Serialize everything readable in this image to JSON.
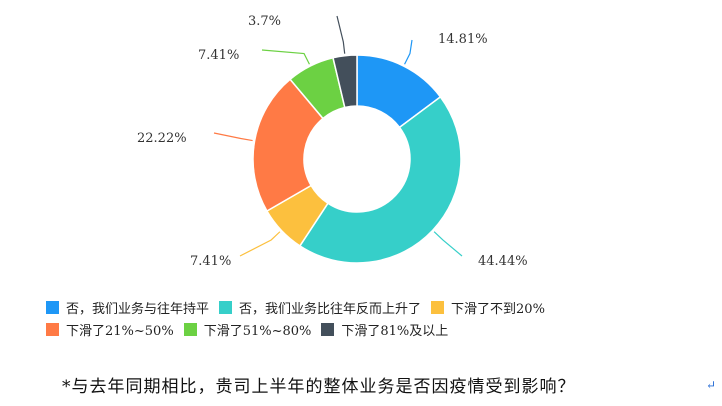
{
  "chart_data": {
    "type": "pie",
    "donut": true,
    "labels": [
      "否，我们业务与往年持平",
      "否，我们业务比往年反而上升了",
      "下滑了不到20%",
      "下滑了21%~50%",
      "下滑了51%~80%",
      "下滑了81%及以上"
    ],
    "values": [
      14.81,
      44.44,
      7.41,
      22.22,
      7.41,
      3.7
    ],
    "value_labels": [
      "14.81%",
      "44.44%",
      "7.41%",
      "22.22%",
      "7.41%",
      "3.7%"
    ],
    "colors": [
      "#1e97f6",
      "#36cfc9",
      "#fcc03e",
      "#ff7a45",
      "#6cd143",
      "#434f5b"
    ],
    "legend_position": "bottom",
    "title": "",
    "xlabel": "",
    "ylabel": ""
  },
  "question": "*与去年同期相比，贵司上半年的整体业务是否因疫情受到影响？",
  "corner_mark": "↵"
}
